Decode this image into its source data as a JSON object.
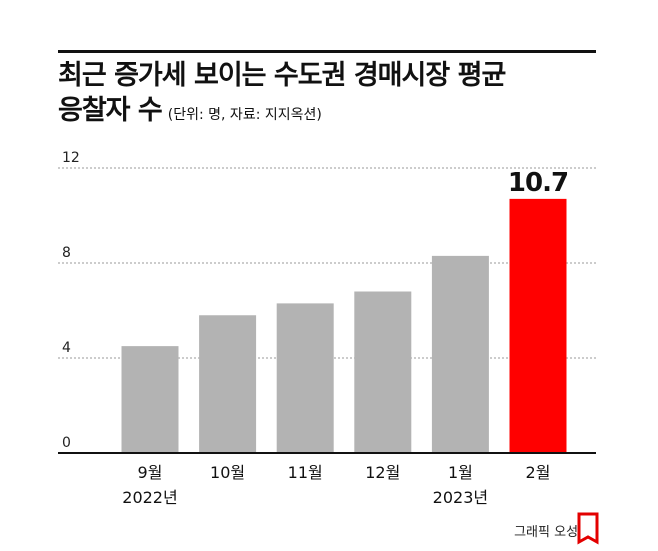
{
  "title": {
    "line1": "최근 증가세 보이는 수도권 경매시장 평균",
    "line2": "응찰자 수",
    "unit_note": "(단위: 명, 자료: 지지옥션)"
  },
  "credit": "그래픽 오성수",
  "colors": {
    "bar": "#b3b3b3",
    "highlight": "#ff0000",
    "grid": "#9a9a9a",
    "axis": "#111111"
  },
  "chart_data": {
    "type": "bar",
    "categories": [
      "9월",
      "10월",
      "11월",
      "12월",
      "1월",
      "2월"
    ],
    "category_sublabels": [
      "2022년",
      "",
      "",
      "",
      "2023년",
      ""
    ],
    "values": [
      4.5,
      5.8,
      6.3,
      6.8,
      8.3,
      10.7
    ],
    "highlight_index": 5,
    "data_labels": [
      "",
      "",
      "",
      "",
      "",
      "10.7"
    ],
    "y_ticks": [
      0,
      4,
      8,
      12
    ],
    "ylim": [
      0,
      12
    ],
    "grid": true,
    "xlabel": "",
    "ylabel": ""
  }
}
